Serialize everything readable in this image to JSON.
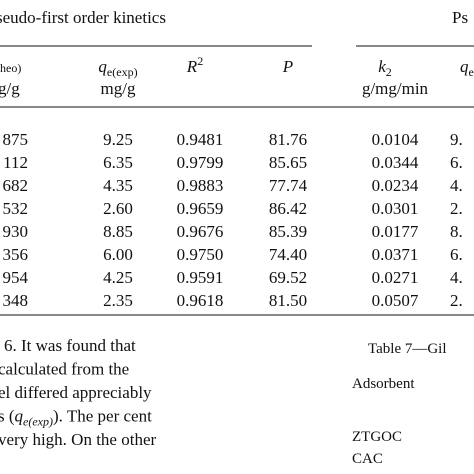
{
  "caption_left": "seudo-first order kinetics",
  "caption_right": "Ps",
  "table": {
    "header": [
      {
        "main": "heo)",
        "unit": "g/g"
      },
      {
        "main": "q",
        "sub": "e(exp)",
        "unit": "mg/g"
      },
      {
        "main": "R",
        "sup": "2"
      },
      {
        "main": "P"
      },
      {
        "main": "k",
        "sub": "2",
        "unit": "g/mg/min"
      },
      {
        "main": "q",
        "sub": "e"
      }
    ],
    "rows": [
      [
        "875",
        "9.25",
        "0.9481",
        "81.76",
        "0.0104",
        "9."
      ],
      [
        "112",
        "6.35",
        "0.9799",
        "85.65",
        "0.0344",
        "6."
      ],
      [
        "682",
        "4.35",
        "0.9883",
        "77.74",
        "0.0234",
        "4."
      ],
      [
        "532",
        "2.60",
        "0.9659",
        "86.42",
        "0.0301",
        "2."
      ],
      [
        "930",
        "8.85",
        "0.9676",
        "85.39",
        "0.0177",
        "8."
      ],
      [
        "356",
        "6.00",
        "0.9750",
        "74.40",
        "0.0371",
        "6."
      ],
      [
        "954",
        "4.25",
        "0.9591",
        "69.52",
        "0.0271",
        "4."
      ],
      [
        "348",
        "2.35",
        "0.9618",
        "81.50",
        "0.0507",
        "2."
      ]
    ]
  },
  "paragraph": [
    [
      {
        "text": "6. It was found that"
      }
    ],
    [
      {
        "text": "calculated from the"
      }
    ],
    [
      {
        "text": "el differed appreciably"
      }
    ],
    [
      {
        "text": "s ("
      },
      {
        "text": "q",
        "sub": "e(exp)"
      },
      {
        "text": "). The per cent"
      }
    ],
    [
      {
        "text": "very high. On the other"
      }
    ]
  ],
  "table7": {
    "title": "Table 7—Gil",
    "header": "Adsorbent",
    "rows": [
      "ZTGOC",
      "CAC"
    ]
  }
}
